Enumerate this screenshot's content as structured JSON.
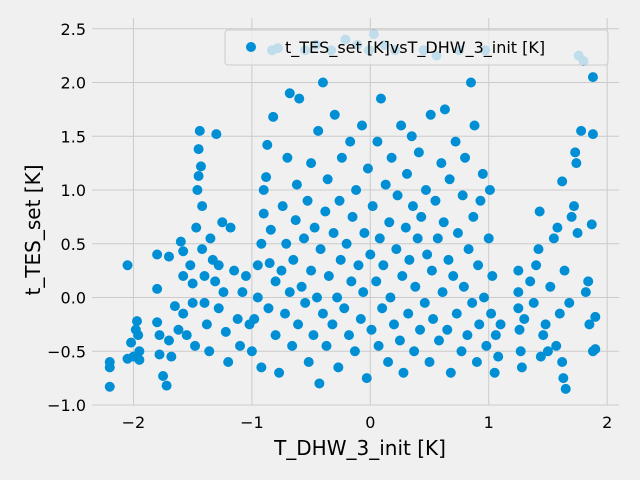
{
  "chart_data": {
    "type": "scatter",
    "title": "",
    "xlabel": "T_DHW_3_init [K]",
    "ylabel": "t_TES_set [K]",
    "xlim": [
      -2.35,
      2.1
    ],
    "ylim": [
      -1.0,
      2.6
    ],
    "xticks": [
      -2,
      -1,
      0,
      1,
      2
    ],
    "xtick_labels": [
      "−2",
      "−1",
      "0",
      "1",
      "2"
    ],
    "yticks": [
      -1.0,
      -0.5,
      0.0,
      0.5,
      1.0,
      1.5,
      2.0,
      2.5
    ],
    "ytick_labels": [
      "−1.0",
      "−0.5",
      "0.0",
      "0.5",
      "1.0",
      "1.5",
      "2.0",
      "2.5"
    ],
    "grid": true,
    "legend_position": "top-right",
    "series": [
      {
        "name": "t_TES_set [K]vsT_DHW_3_init [K]",
        "color": "#008fd5",
        "points": [
          [
            -2.2,
            -0.6
          ],
          [
            -2.2,
            -0.65
          ],
          [
            -2.2,
            -0.83
          ],
          [
            -2.05,
            0.3
          ],
          [
            -2.05,
            -0.57
          ],
          [
            -2.02,
            -0.42
          ],
          [
            -2.0,
            -0.55
          ],
          [
            -1.98,
            -0.3
          ],
          [
            -1.97,
            -0.22
          ],
          [
            -1.96,
            -0.35
          ],
          [
            -1.95,
            -0.58
          ],
          [
            -1.95,
            -0.5
          ],
          [
            -1.8,
            0.4
          ],
          [
            -1.8,
            0.08
          ],
          [
            -1.8,
            -0.23
          ],
          [
            -1.78,
            -0.35
          ],
          [
            -1.78,
            -0.53
          ],
          [
            -1.75,
            -0.73
          ],
          [
            -1.72,
            -0.82
          ],
          [
            -1.7,
            -0.4
          ],
          [
            -1.7,
            0.38
          ],
          [
            -1.68,
            -0.55
          ],
          [
            -1.65,
            -0.08
          ],
          [
            -1.62,
            -0.3
          ],
          [
            -1.6,
            0.52
          ],
          [
            -1.58,
            0.43
          ],
          [
            -1.58,
            0.2
          ],
          [
            -1.58,
            -0.15
          ],
          [
            -1.55,
            -0.35
          ],
          [
            -1.52,
            0.3
          ],
          [
            -1.5,
            0.13
          ],
          [
            -1.5,
            -0.05
          ],
          [
            -1.48,
            -0.45
          ],
          [
            -1.47,
            0.65
          ],
          [
            -1.46,
            1.0
          ],
          [
            -1.45,
            1.13
          ],
          [
            -1.45,
            1.38
          ],
          [
            -1.44,
            1.55
          ],
          [
            -1.43,
            1.22
          ],
          [
            -1.42,
            0.85
          ],
          [
            -1.42,
            0.45
          ],
          [
            -1.4,
            0.2
          ],
          [
            -1.4,
            -0.05
          ],
          [
            -1.38,
            -0.25
          ],
          [
            -1.36,
            -0.5
          ],
          [
            -1.35,
            0.55
          ],
          [
            -1.33,
            0.35
          ],
          [
            -1.31,
            0.15
          ],
          [
            -1.3,
            1.52
          ],
          [
            -1.28,
            0.3
          ],
          [
            -1.28,
            -0.1
          ],
          [
            -1.25,
            0.7
          ],
          [
            -1.24,
            0.05
          ],
          [
            -1.22,
            -0.32
          ],
          [
            -1.2,
            -0.6
          ],
          [
            -1.18,
            0.65
          ],
          [
            -1.15,
            0.25
          ],
          [
            -1.12,
            -0.2
          ],
          [
            -1.1,
            -0.45
          ],
          [
            -1.08,
            0.05
          ],
          [
            -1.05,
            0.2
          ],
          [
            -1.02,
            -0.25
          ],
          [
            -1.0,
            -0.5
          ],
          [
            -0.98,
            -0.2
          ],
          [
            -0.95,
            0.0
          ],
          [
            -0.95,
            0.3
          ],
          [
            -0.92,
            -0.65
          ],
          [
            -0.92,
            0.5
          ],
          [
            -0.9,
            0.78
          ],
          [
            -0.9,
            1.0
          ],
          [
            -0.88,
            1.12
          ],
          [
            -0.87,
            1.42
          ],
          [
            -0.86,
            -0.1
          ],
          [
            -0.85,
            0.32
          ],
          [
            -0.84,
            0.63
          ],
          [
            -0.83,
            2.3
          ],
          [
            -0.82,
            1.68
          ],
          [
            -0.8,
            -0.35
          ],
          [
            -0.8,
            0.15
          ],
          [
            -0.78,
            2.32
          ],
          [
            -0.77,
            -0.7
          ],
          [
            -0.75,
            0.25
          ],
          [
            -0.74,
            0.85
          ],
          [
            -0.72,
            -0.15
          ],
          [
            -0.71,
            0.5
          ],
          [
            -0.7,
            1.3
          ],
          [
            -0.68,
            0.05
          ],
          [
            -0.68,
            1.9
          ],
          [
            -0.66,
            -0.45
          ],
          [
            -0.65,
            0.35
          ],
          [
            -0.63,
            0.72
          ],
          [
            -0.62,
            1.05
          ],
          [
            -0.61,
            -0.25
          ],
          [
            -0.6,
            1.85
          ],
          [
            -0.58,
            0.1
          ],
          [
            -0.56,
            0.55
          ],
          [
            -0.55,
            -0.05
          ],
          [
            -0.55,
            2.3
          ],
          [
            -0.53,
            0.9
          ],
          [
            -0.52,
            -0.6
          ],
          [
            -0.5,
            0.25
          ],
          [
            -0.5,
            1.25
          ],
          [
            -0.48,
            -0.35
          ],
          [
            -0.47,
            0.65
          ],
          [
            -0.46,
            2.35
          ],
          [
            -0.45,
            0.0
          ],
          [
            -0.44,
            1.55
          ],
          [
            -0.43,
            -0.8
          ],
          [
            -0.42,
            0.45
          ],
          [
            -0.4,
            -0.15
          ],
          [
            -0.4,
            2.0
          ],
          [
            -0.38,
            0.8
          ],
          [
            -0.37,
            -0.45
          ],
          [
            -0.36,
            1.1
          ],
          [
            -0.35,
            0.2
          ],
          [
            -0.33,
            2.3
          ],
          [
            -0.32,
            -0.25
          ],
          [
            -0.31,
            0.6
          ],
          [
            -0.3,
            1.7
          ],
          [
            -0.28,
            0.0
          ],
          [
            -0.27,
            -0.65
          ],
          [
            -0.26,
            0.9
          ],
          [
            -0.25,
            0.35
          ],
          [
            -0.24,
            1.3
          ],
          [
            -0.22,
            -0.1
          ],
          [
            -0.21,
            2.4
          ],
          [
            -0.2,
            0.5
          ],
          [
            -0.18,
            -0.35
          ],
          [
            -0.17,
            1.45
          ],
          [
            -0.16,
            0.15
          ],
          [
            -0.15,
            0.75
          ],
          [
            -0.13,
            -0.5
          ],
          [
            -0.12,
            1.0
          ],
          [
            -0.11,
            2.35
          ],
          [
            -0.1,
            0.3
          ],
          [
            -0.08,
            -0.2
          ],
          [
            -0.07,
            1.6
          ],
          [
            -0.06,
            0.05
          ],
          [
            -0.05,
            0.6
          ],
          [
            -0.03,
            -0.75
          ],
          [
            -0.02,
            1.2
          ],
          [
            -0.01,
            2.3
          ],
          [
            0.0,
            0.4
          ],
          [
            0.01,
            -0.3
          ],
          [
            0.02,
            0.85
          ],
          [
            0.03,
            2.45
          ],
          [
            0.05,
            0.15
          ],
          [
            0.06,
            1.45
          ],
          [
            0.07,
            -0.45
          ],
          [
            0.08,
            0.55
          ],
          [
            0.09,
            1.85
          ],
          [
            0.1,
            -0.1
          ],
          [
            0.11,
            0.3
          ],
          [
            0.12,
            2.35
          ],
          [
            0.13,
            1.05
          ],
          [
            0.15,
            -0.6
          ],
          [
            0.16,
            0.7
          ],
          [
            0.17,
            0.0
          ],
          [
            0.18,
            1.3
          ],
          [
            0.2,
            -0.25
          ],
          [
            0.21,
            2.3
          ],
          [
            0.22,
            0.45
          ],
          [
            0.23,
            0.95
          ],
          [
            0.25,
            -0.4
          ],
          [
            0.26,
            1.6
          ],
          [
            0.27,
            0.2
          ],
          [
            0.28,
            -0.7
          ],
          [
            0.3,
            0.65
          ],
          [
            0.31,
            1.15
          ],
          [
            0.32,
            -0.15
          ],
          [
            0.33,
            0.35
          ],
          [
            0.35,
            1.5
          ],
          [
            0.36,
            0.85
          ],
          [
            0.37,
            -0.5
          ],
          [
            0.38,
            0.1
          ],
          [
            0.4,
            0.55
          ],
          [
            0.41,
            1.35
          ],
          [
            0.42,
            -0.3
          ],
          [
            0.43,
            0.75
          ],
          [
            0.45,
            2.3
          ],
          [
            0.46,
            -0.05
          ],
          [
            0.47,
            1.0
          ],
          [
            0.48,
            0.4
          ],
          [
            0.5,
            -0.6
          ],
          [
            0.51,
            1.7
          ],
          [
            0.52,
            0.25
          ],
          [
            0.53,
            -0.2
          ],
          [
            0.55,
            0.9
          ],
          [
            0.56,
            2.25
          ],
          [
            0.57,
            0.55
          ],
          [
            0.58,
            -0.4
          ],
          [
            0.6,
            1.25
          ],
          [
            0.61,
            0.05
          ],
          [
            0.62,
            0.7
          ],
          [
            0.63,
            1.75
          ],
          [
            0.65,
            -0.3
          ],
          [
            0.66,
            0.35
          ],
          [
            0.67,
            1.1
          ],
          [
            0.68,
            -0.7
          ],
          [
            0.7,
            0.2
          ],
          [
            0.72,
            1.45
          ],
          [
            0.73,
            -0.15
          ],
          [
            0.74,
            0.6
          ],
          [
            0.75,
            2.3
          ],
          [
            0.77,
            -0.5
          ],
          [
            0.78,
            0.95
          ],
          [
            0.79,
            0.1
          ],
          [
            0.8,
            1.3
          ],
          [
            0.82,
            -0.35
          ],
          [
            0.83,
            0.45
          ],
          [
            0.85,
            2.0
          ],
          [
            0.86,
            -0.05
          ],
          [
            0.87,
            0.75
          ],
          [
            0.88,
            1.6
          ],
          [
            0.9,
            -0.6
          ],
          [
            0.91,
            0.3
          ],
          [
            0.92,
            -0.25
          ],
          [
            0.93,
            0.9
          ],
          [
            0.95,
            1.15
          ],
          [
            0.96,
            0.0
          ],
          [
            0.97,
            2.3
          ],
          [
            0.98,
            -0.45
          ],
          [
            1.0,
            0.55
          ],
          [
            1.01,
            1.0
          ],
          [
            1.02,
            -0.15
          ],
          [
            1.03,
            0.2
          ],
          [
            1.05,
            -0.7
          ],
          [
            1.06,
            -0.35
          ],
          [
            1.08,
            -0.55
          ],
          [
            1.1,
            -0.25
          ],
          [
            1.25,
            0.25
          ],
          [
            1.25,
            0.05
          ],
          [
            1.25,
            -0.1
          ],
          [
            1.26,
            -0.3
          ],
          [
            1.27,
            -0.5
          ],
          [
            1.28,
            -0.65
          ],
          [
            1.3,
            -0.2
          ],
          [
            1.35,
            0.15
          ],
          [
            1.38,
            -0.05
          ],
          [
            1.4,
            0.3
          ],
          [
            1.42,
            0.45
          ],
          [
            1.43,
            0.8
          ],
          [
            1.44,
            -0.55
          ],
          [
            1.46,
            -0.35
          ],
          [
            1.48,
            -0.25
          ],
          [
            1.5,
            -0.5
          ],
          [
            1.52,
            0.1
          ],
          [
            1.55,
            0.55
          ],
          [
            1.57,
            -0.45
          ],
          [
            1.58,
            0.65
          ],
          [
            1.6,
            -0.15
          ],
          [
            1.62,
            1.08
          ],
          [
            1.62,
            -0.6
          ],
          [
            1.63,
            -0.75
          ],
          [
            1.64,
            0.25
          ],
          [
            1.65,
            -0.85
          ],
          [
            1.68,
            -0.05
          ],
          [
            1.7,
            0.75
          ],
          [
            1.72,
            0.85
          ],
          [
            1.73,
            1.35
          ],
          [
            1.74,
            1.25
          ],
          [
            1.75,
            0.6
          ],
          [
            1.76,
            2.25
          ],
          [
            1.78,
            1.55
          ],
          [
            1.8,
            2.2
          ],
          [
            1.82,
            0.05
          ],
          [
            1.84,
            0.15
          ],
          [
            1.85,
            -0.25
          ],
          [
            1.87,
            0.68
          ],
          [
            1.88,
            1.52
          ],
          [
            1.88,
            2.05
          ],
          [
            1.88,
            -0.5
          ],
          [
            1.9,
            -0.18
          ],
          [
            1.9,
            -0.48
          ]
        ]
      }
    ]
  }
}
